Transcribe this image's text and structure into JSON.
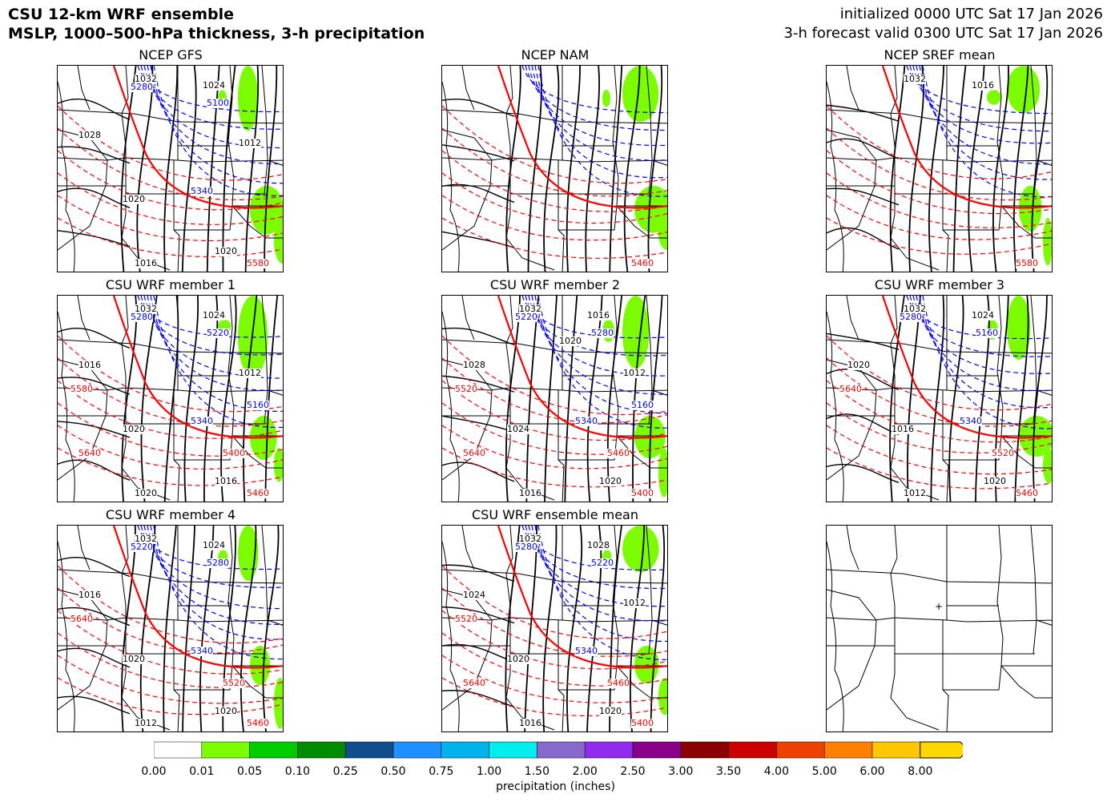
{
  "header": {
    "title_line1": "CSU 12-km WRF ensemble",
    "title_line2": "MSLP, 1000–500-hPa thickness, 3-h precipitation",
    "init_line": "initialized 0000 UTC Sat 17 Jan 2026",
    "valid_line": "3-h forecast valid 0300 UTC Sat 17 Jan 2026"
  },
  "panels": [
    {
      "title": "NCEP GFS",
      "labels": {
        "black": [
          "1032",
          "1024",
          "1028",
          "1020",
          "1020",
          "1016",
          "1012"
        ],
        "blue": [
          "5280",
          "5100",
          "5340"
        ],
        "red": [
          "5580"
        ]
      }
    },
    {
      "title": "NCEP NAM",
      "labels": {
        "black": [],
        "blue": [],
        "red": [
          "5460"
        ]
      }
    },
    {
      "title": "NCEP SREF mean",
      "labels": {
        "black": [
          "1032",
          "1016"
        ],
        "blue": [],
        "red": [
          "5580"
        ]
      }
    },
    {
      "title": "CSU WRF member 1",
      "labels": {
        "black": [
          "1032",
          "1024",
          "1016",
          "1020",
          "1016",
          "1020",
          "1012"
        ],
        "blue": [
          "5280",
          "5220",
          "5340",
          "5160"
        ],
        "red": [
          "5460",
          "5400",
          "5580",
          "5640"
        ]
      }
    },
    {
      "title": "CSU WRF member 2",
      "labels": {
        "black": [
          "1032",
          "1016",
          "1028",
          "1024",
          "1020",
          "1016",
          "1012",
          "1020"
        ],
        "blue": [
          "5220",
          "5280",
          "5340",
          "5160"
        ],
        "red": [
          "5400",
          "5460",
          "5520",
          "5640"
        ]
      }
    },
    {
      "title": "CSU WRF member 3",
      "labels": {
        "black": [
          "1032",
          "1024",
          "1020",
          "1016",
          "1020",
          "1012"
        ],
        "blue": [
          "5280",
          "5160",
          "5340"
        ],
        "red": [
          "5460",
          "5520",
          "5640"
        ]
      }
    },
    {
      "title": "CSU WRF member 4",
      "labels": {
        "black": [
          "1032",
          "1024",
          "1016",
          "1020",
          "1020",
          "1012"
        ],
        "blue": [
          "5220",
          "5280",
          "5340"
        ],
        "red": [
          "5460",
          "5520",
          "5640"
        ]
      }
    },
    {
      "title": "CSU WRF ensemble mean",
      "labels": {
        "black": [
          "1032",
          "1028",
          "1024",
          "1020",
          "1020",
          "1016",
          "1012"
        ],
        "blue": [
          "5280",
          "5220",
          "5340"
        ],
        "red": [
          "5400",
          "5460",
          "5520",
          "5640"
        ]
      }
    },
    {
      "title": "",
      "labels": {
        "black": [],
        "blue": [],
        "red": []
      }
    }
  ],
  "colorbar": {
    "label": "precipitation (inches)",
    "ticks": [
      "0.00",
      "0.01",
      "0.05",
      "0.10",
      "0.25",
      "0.50",
      "0.75",
      "1.00",
      "1.50",
      "2.00",
      "2.50",
      "3.00",
      "3.50",
      "4.00",
      "5.00",
      "6.00",
      "8.00"
    ],
    "colors": [
      "#ffffff",
      "#7cfc00",
      "#00cd00",
      "#008b00",
      "#104e8b",
      "#1e90ff",
      "#00b2ee",
      "#00eeee",
      "#8968cd",
      "#912cee",
      "#8b008b",
      "#8b0000",
      "#cd0000",
      "#ee4000",
      "#ff7f00",
      "#ffc700",
      "#ffd700"
    ]
  },
  "style": {
    "isobar_color": "#000000",
    "thickness_cold_color": "#0000ff",
    "thickness_warm_color": "#ff0000",
    "precip_color": "#7cfc00"
  }
}
